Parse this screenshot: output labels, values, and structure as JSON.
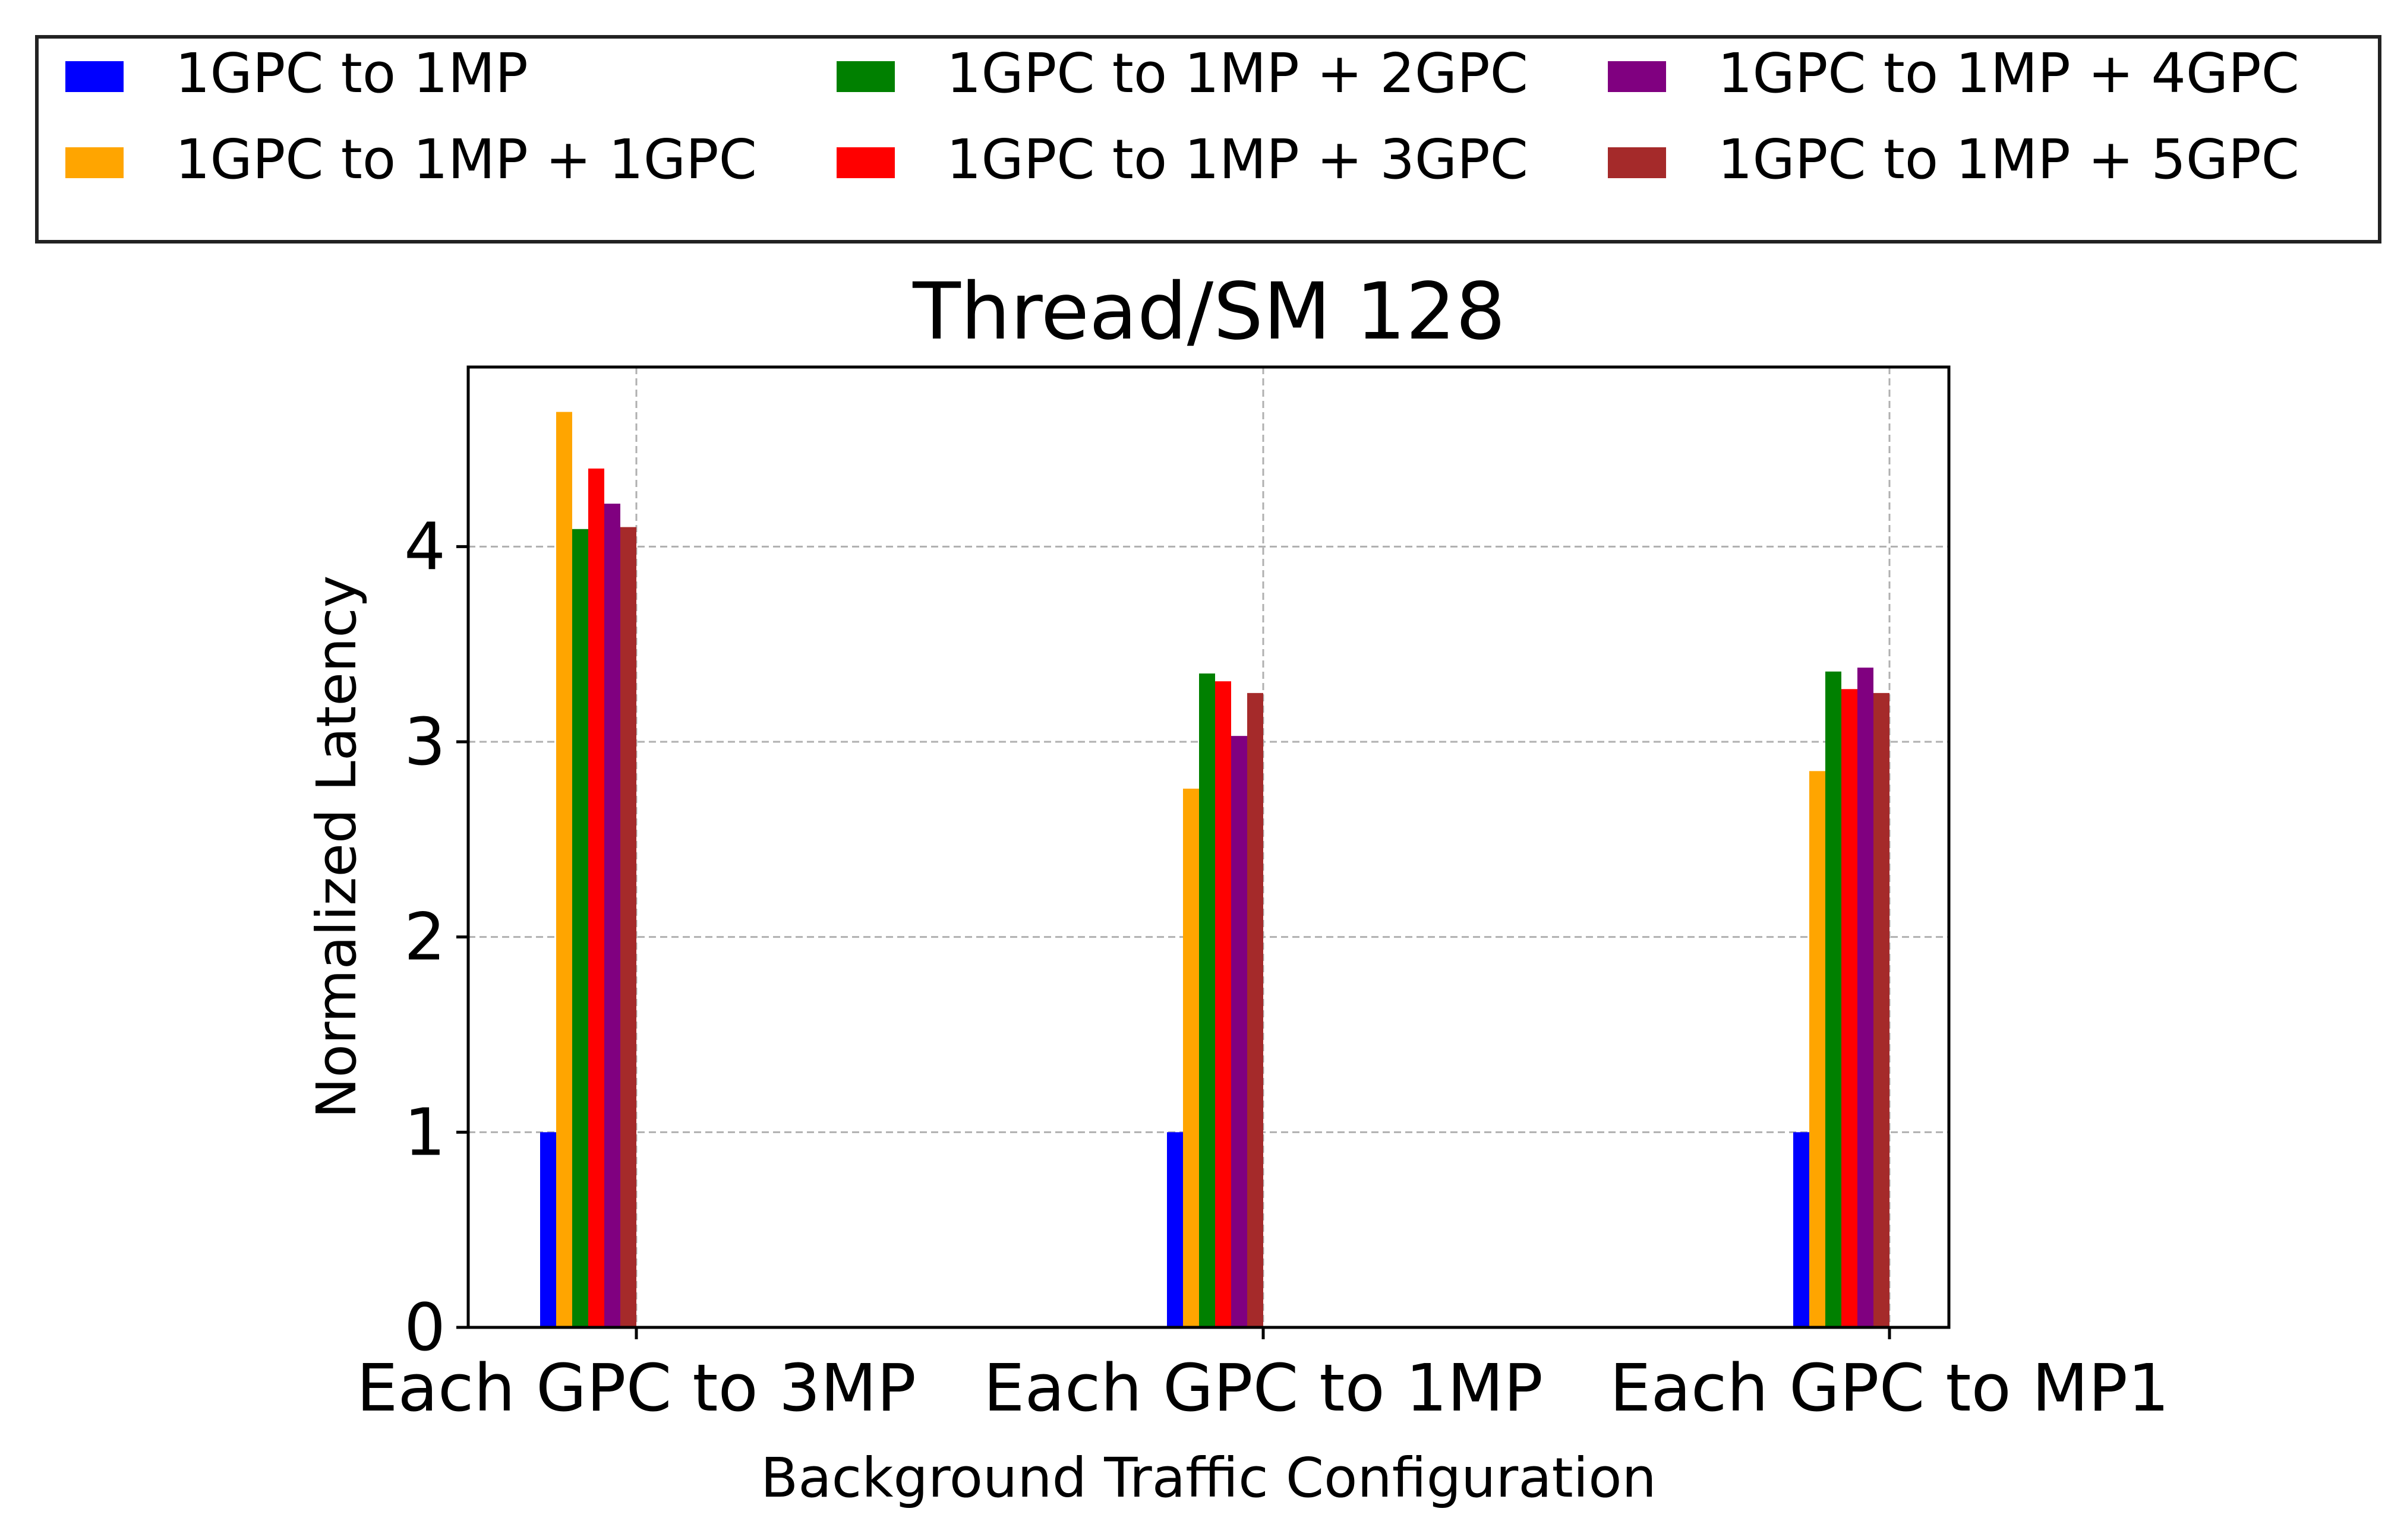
{
  "chart_data": {
    "type": "bar",
    "title": "Thread/SM 128",
    "xlabel": "Background Traffic Configuration",
    "ylabel": "Normalized Latency",
    "categories": [
      "Each GPC to 3MP",
      "Each GPC to 1MP",
      "Each GPC to MP1"
    ],
    "ylim": [
      0,
      4.92
    ],
    "yticks": [
      "0",
      "1",
      "2",
      "3",
      "4"
    ],
    "grid": true,
    "legend_position": "top, outside plot, 3 columns",
    "series": [
      {
        "name": "1GPC to 1MP",
        "color": "#0000ff",
        "values": [
          1.0,
          1.0,
          1.0
        ]
      },
      {
        "name": "1GPC to 1MP + 1GPC",
        "color": "#ffa500",
        "values": [
          4.69,
          2.76,
          2.85
        ]
      },
      {
        "name": "1GPC to 1MP + 2GPC",
        "color": "#008000",
        "values": [
          4.09,
          3.35,
          3.36
        ]
      },
      {
        "name": "1GPC to 1MP + 3GPC",
        "color": "#ff0000",
        "values": [
          4.4,
          3.31,
          3.27
        ]
      },
      {
        "name": "1GPC to 1MP + 4GPC",
        "color": "#800080",
        "values": [
          4.22,
          3.03,
          3.38
        ]
      },
      {
        "name": "1GPC to 1MP + 5GPC",
        "color": "#a52a2a",
        "values": [
          4.1,
          3.25,
          3.25
        ]
      }
    ]
  }
}
